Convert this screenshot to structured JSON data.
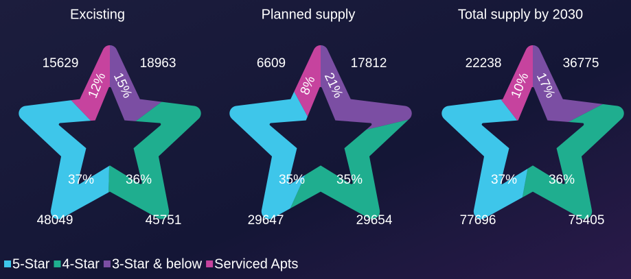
{
  "chart_data": [
    {
      "type": "pie",
      "title": "Excisting",
      "categories": [
        "5-Star",
        "4-Star",
        "3-Star & below",
        "Serviced Apts"
      ],
      "colors": [
        "#3ec6ea",
        "#1fae8f",
        "#7b4ea3",
        "#c6439e"
      ],
      "values": [
        48049,
        45751,
        18963,
        15629
      ],
      "share_labels": [
        "37%",
        "36%",
        "15%",
        "12%"
      ]
    },
    {
      "type": "pie",
      "title": "Planned supply",
      "categories": [
        "5-Star",
        "4-Star",
        "3-Star & below",
        "Serviced Apts"
      ],
      "colors": [
        "#3ec6ea",
        "#1fae8f",
        "#7b4ea3",
        "#c6439e"
      ],
      "values": [
        29647,
        29654,
        17812,
        6609
      ],
      "share_labels": [
        "35%",
        "35%",
        "21%",
        "8%"
      ]
    },
    {
      "type": "pie",
      "title": "Total supply by 2030",
      "categories": [
        "5-Star",
        "4-Star",
        "3-Star & below",
        "Serviced Apts"
      ],
      "colors": [
        "#3ec6ea",
        "#1fae8f",
        "#7b4ea3",
        "#c6439e"
      ],
      "values": [
        77696,
        75405,
        36775,
        22238
      ],
      "share_labels": [
        "37%",
        "36%",
        "17%",
        "10%"
      ]
    }
  ]
}
